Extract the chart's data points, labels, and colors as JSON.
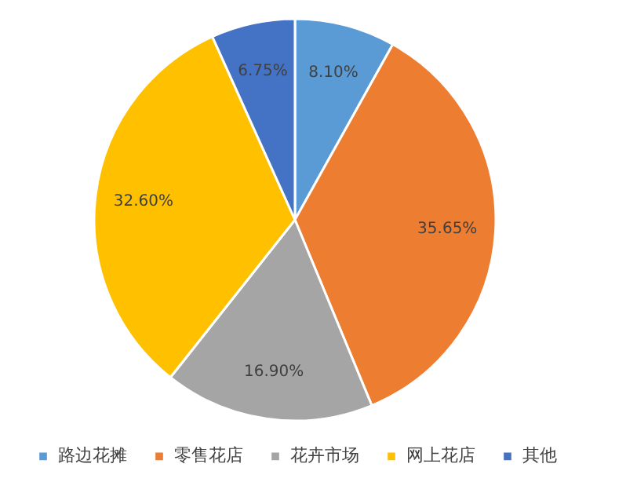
{
  "chart_data": {
    "type": "pie",
    "categories": [
      "路边花摊",
      "零售花店",
      "花卉市场",
      "网上花店",
      "其他"
    ],
    "values": [
      8.1,
      35.65,
      16.9,
      32.6,
      6.75
    ],
    "value_labels": [
      "8.10%",
      "35.65%",
      "16.90%",
      "32.60%",
      "6.75%"
    ],
    "colors": [
      "#5b9bd5",
      "#ed7d31",
      "#a5a5a5",
      "#ffc000",
      "#4472c4"
    ],
    "legend": "bottom"
  }
}
